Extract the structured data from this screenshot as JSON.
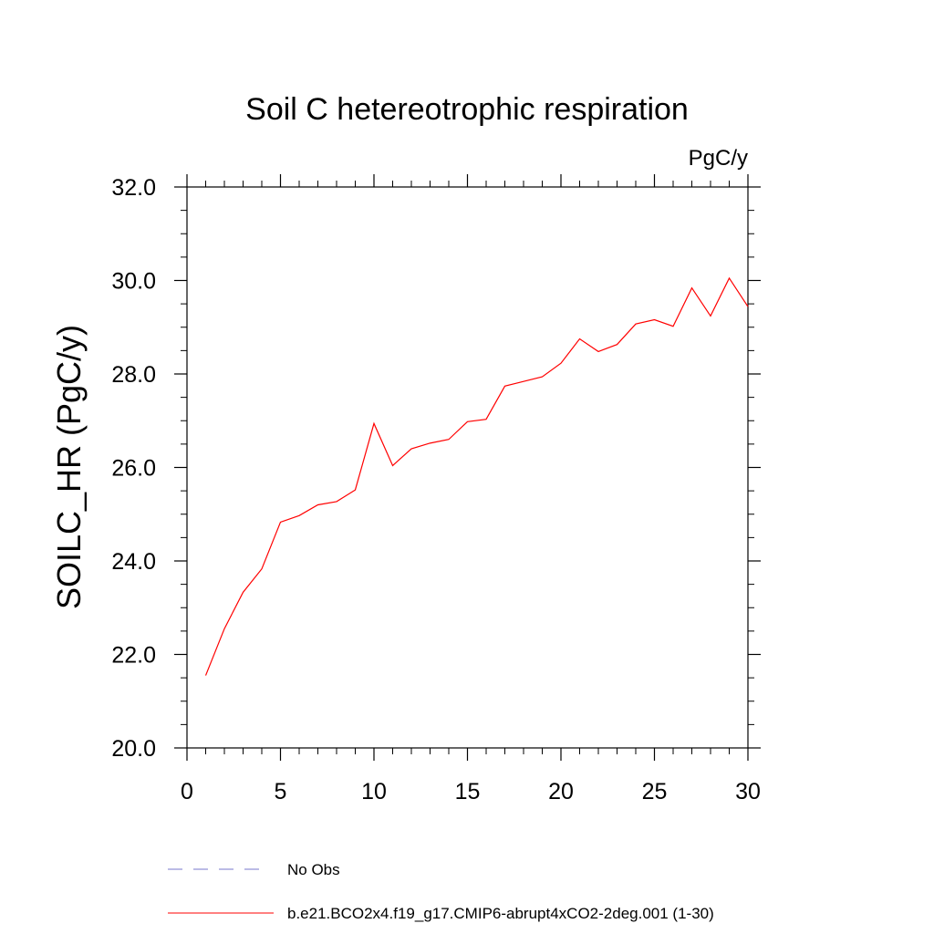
{
  "chart_data": {
    "type": "line",
    "title": "Soil C hetereotrophic respiration",
    "units": "PgC/y",
    "xlabel": "",
    "ylabel": "SOILC_HR  (PgC/y)",
    "xlim": [
      0,
      30
    ],
    "ylim": [
      20.0,
      32.0
    ],
    "xticks": [
      0,
      5,
      10,
      15,
      20,
      25,
      30
    ],
    "xtick_labels": [
      "0",
      "5",
      "10",
      "15",
      "20",
      "25",
      "30"
    ],
    "yticks": [
      20.0,
      22.0,
      24.0,
      26.0,
      28.0,
      30.0,
      32.0
    ],
    "ytick_labels": [
      "20.0",
      "22.0",
      "24.0",
      "26.0",
      "28.0",
      "30.0",
      "32.0"
    ],
    "grid": false,
    "legend_position": "bottom",
    "series": [
      {
        "name": "No Obs",
        "color": "#7777cc",
        "style": "dashed",
        "values": []
      },
      {
        "name": "b.e21.BCO2x4.f19_g17.CMIP6-abrupt4xCO2-2deg.001 (1-30)",
        "color": "#ff0000",
        "style": "solid",
        "x": [
          1,
          2,
          3,
          4,
          5,
          6,
          7,
          8,
          9,
          10,
          11,
          12,
          13,
          14,
          15,
          16,
          17,
          18,
          19,
          20,
          21,
          22,
          23,
          24,
          25,
          26,
          27,
          28,
          29,
          30
        ],
        "values": [
          21.55,
          22.55,
          23.33,
          23.83,
          24.83,
          24.97,
          25.2,
          25.27,
          25.52,
          26.94,
          26.04,
          26.4,
          26.52,
          26.6,
          26.98,
          27.03,
          27.74,
          27.84,
          27.94,
          28.23,
          28.75,
          28.48,
          28.63,
          29.07,
          29.16,
          29.02,
          29.84,
          29.24,
          30.05,
          29.44
        ]
      }
    ]
  }
}
